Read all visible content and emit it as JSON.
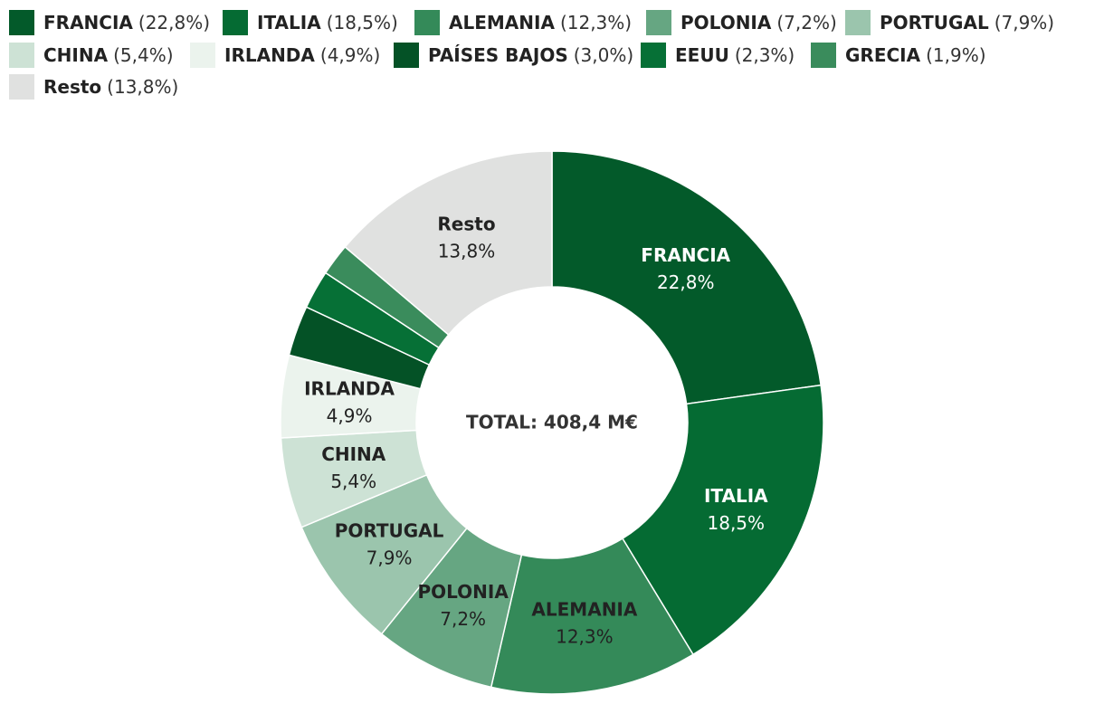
{
  "chart_data": {
    "type": "pie",
    "variant": "donut",
    "center_label": "TOTAL: 408,4 M€",
    "legend_position": "top",
    "slices": [
      {
        "name": "FRANCIA",
        "pct_label": "22,8%",
        "value": 22.8,
        "color": "#035a2a",
        "label_color": "#ffffff",
        "show_label": true
      },
      {
        "name": "ITALIA",
        "pct_label": "18,5%",
        "value": 18.5,
        "color": "#056b33",
        "label_color": "#ffffff",
        "show_label": true
      },
      {
        "name": "ALEMANIA",
        "pct_label": "12,3%",
        "value": 12.3,
        "color": "#348a59",
        "label_color": "#222222",
        "show_label": true
      },
      {
        "name": "POLONIA",
        "pct_label": "7,2%",
        "value": 7.2,
        "color": "#66a682",
        "label_color": "#222222",
        "show_label": true
      },
      {
        "name": "PORTUGAL",
        "pct_label": "7,9%",
        "value": 7.9,
        "color": "#9bc5ad",
        "label_color": "#222222",
        "show_label": true
      },
      {
        "name": "CHINA",
        "pct_label": "5,4%",
        "value": 5.4,
        "color": "#cde2d5",
        "label_color": "#222222",
        "show_label": true
      },
      {
        "name": "IRLANDA",
        "pct_label": "4,9%",
        "value": 4.9,
        "color": "#ebf3ed",
        "label_color": "#222222",
        "show_label": true
      },
      {
        "name": "PAÍSES BAJOS",
        "pct_label": "3,0%",
        "value": 3.0,
        "color": "#045226",
        "label_color": "#ffffff",
        "show_label": false
      },
      {
        "name": "EEUU",
        "pct_label": "2,3%",
        "value": 2.3,
        "color": "#067036",
        "label_color": "#ffffff",
        "show_label": false
      },
      {
        "name": "GRECIA",
        "pct_label": "1,9%",
        "value": 1.9,
        "color": "#3a8c5c",
        "label_color": "#ffffff",
        "show_label": false
      },
      {
        "name": "Resto",
        "pct_label": "13,8%",
        "value": 13.8,
        "color": "#e0e1e0",
        "label_color": "#222222",
        "show_label": true
      }
    ]
  }
}
